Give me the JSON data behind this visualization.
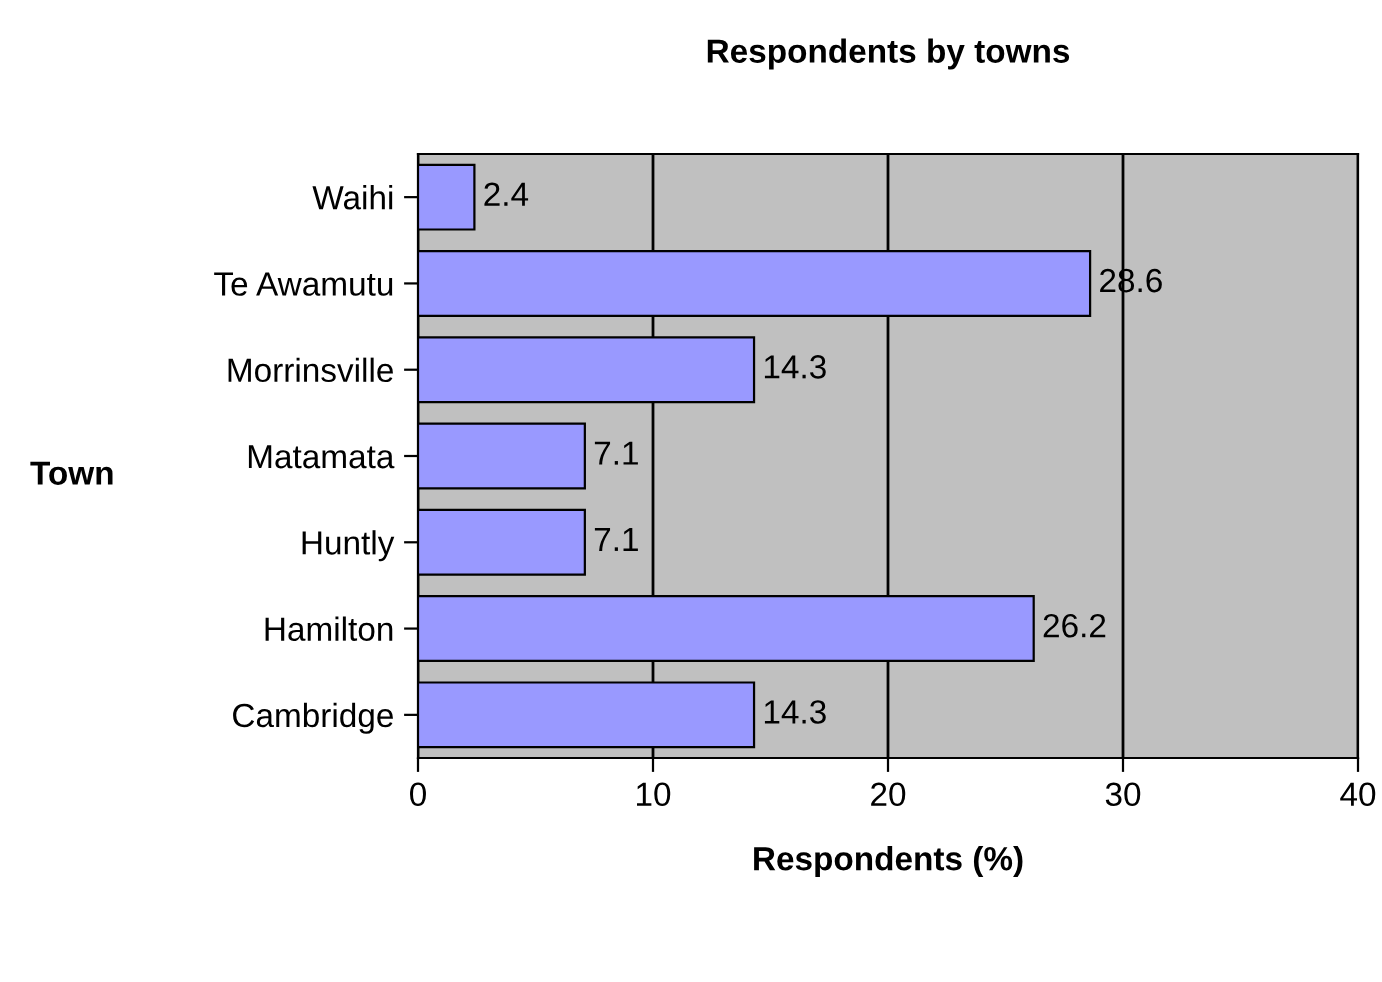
{
  "chart_data": {
    "type": "bar",
    "orientation": "horizontal",
    "title": "Respondents by towns",
    "xlabel": "Respondents (%)",
    "ylabel": "Town",
    "categories": [
      "Waihi",
      "Te Awamutu",
      "Morrinsville",
      "Matamata",
      "Huntly",
      "Hamilton",
      "Cambridge"
    ],
    "values": [
      2.4,
      28.6,
      14.3,
      7.1,
      7.1,
      26.2,
      14.3
    ],
    "color": "#9999ff",
    "xlim": [
      0,
      40
    ],
    "xticks": [
      0,
      10,
      20,
      30,
      40
    ],
    "grid": "x",
    "data_labels": true
  }
}
